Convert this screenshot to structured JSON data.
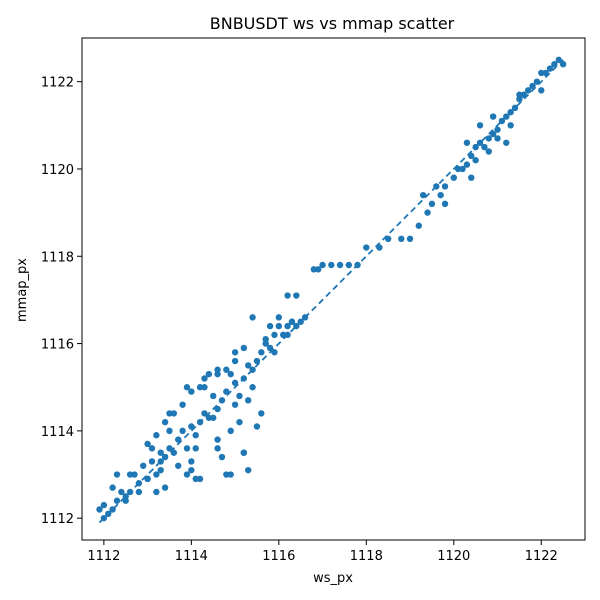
{
  "chart_data": {
    "type": "scatter",
    "title": "BNBUSDT ws vs mmap scatter",
    "xlabel": "ws_px",
    "ylabel": "mmap_px",
    "xlim": [
      1111.5,
      1123.0
    ],
    "ylim": [
      1111.5,
      1123.0
    ],
    "xticks": [
      1112,
      1114,
      1116,
      1118,
      1120,
      1122
    ],
    "yticks": [
      1112,
      1114,
      1116,
      1118,
      1120,
      1122
    ],
    "grid": false,
    "colors": {
      "points": "#1f77b4",
      "reference_line": "#1f77b4"
    },
    "reference_line": {
      "style": "dashed",
      "from": [
        1111.9,
        1111.9
      ],
      "to": [
        1122.5,
        1122.5
      ]
    },
    "series": [
      {
        "x": [
          1111.9,
          1112.0,
          1112.1,
          1112.2,
          1112.3,
          1112.0,
          1112.4,
          1112.2,
          1112.5,
          1112.6,
          1112.8,
          1113.0,
          1112.7,
          1113.1,
          1113.2,
          1112.9,
          1113.3,
          1112.3,
          1112.6,
          1113.0,
          1113.1,
          1113.3,
          1113.4,
          1113.5,
          1113.2,
          1113.6,
          1113.7,
          1113.8,
          1113.4,
          1113.9,
          1114.0,
          1114.1,
          1113.6,
          1114.2,
          1113.8,
          1114.3,
          1114.4,
          1114.5,
          1114.6,
          1114.2,
          1114.7,
          1114.8,
          1114.9,
          1115.0,
          1114.4,
          1115.1,
          1115.2,
          1115.3,
          1114.6,
          1115.0,
          1115.4,
          1115.5,
          1115.6,
          1115.2,
          1115.7,
          1115.8,
          1115.9,
          1116.0,
          1115.4,
          1116.2,
          1116.3,
          1115.7,
          1113.0,
          1113.5,
          1114.0,
          1114.5,
          1115.0,
          1115.3,
          1113.7,
          1114.1,
          1114.6,
          1115.1,
          1113.9,
          1114.3,
          1114.8,
          1113.3,
          1114.0,
          1114.7,
          1115.2,
          1114.2,
          1114.9,
          1115.5,
          1115.0,
          1113.5,
          1114.3,
          1114.9,
          1115.3,
          1114.6,
          1115.2,
          1114.1,
          1114.8,
          1115.6,
          1115.9,
          1116.1,
          1115.8,
          1116.2,
          1116.4,
          1116.0,
          1116.3,
          1116.5,
          1116.6,
          1116.2,
          1116.8,
          1116.9,
          1117.0,
          1117.2,
          1116.4,
          1117.4,
          1117.6,
          1117.8,
          1118.0,
          1118.3,
          1118.5,
          1118.8,
          1119.0,
          1119.2,
          1119.4,
          1119.5,
          1119.7,
          1119.8,
          1120.0,
          1120.1,
          1120.2,
          1120.3,
          1120.4,
          1120.5,
          1120.6,
          1120.7,
          1120.8,
          1120.9,
          1121.0,
          1121.1,
          1121.2,
          1121.3,
          1121.4,
          1121.5,
          1121.6,
          1121.7,
          1121.8,
          1121.9,
          1122.0,
          1122.1,
          1122.2,
          1122.3,
          1122.4,
          1122.5,
          1120.3,
          1120.5,
          1120.8,
          1121.0,
          1120.6,
          1121.3,
          1120.9,
          1121.5,
          1122.0,
          1121.2,
          1120.4,
          1119.6,
          1119.3,
          1119.8,
          1113.2,
          1112.5,
          1113.4,
          1112.8,
          1114.6,
          1115.4,
          1114.0,
          1113.9
        ],
        "y": [
          1112.2,
          1112.0,
          1112.1,
          1112.2,
          1112.4,
          1112.3,
          1112.6,
          1112.7,
          1112.5,
          1113.0,
          1112.8,
          1112.9,
          1113.0,
          1113.3,
          1113.0,
          1113.2,
          1113.5,
          1113.0,
          1112.6,
          1112.9,
          1113.6,
          1113.1,
          1113.4,
          1113.6,
          1113.9,
          1113.5,
          1113.8,
          1114.0,
          1114.2,
          1113.6,
          1114.1,
          1113.9,
          1114.4,
          1114.2,
          1114.6,
          1114.4,
          1114.3,
          1114.8,
          1114.5,
          1115.0,
          1114.7,
          1114.9,
          1115.3,
          1115.1,
          1115.3,
          1114.8,
          1115.2,
          1115.5,
          1115.4,
          1115.6,
          1115.4,
          1115.6,
          1115.8,
          1115.9,
          1116.0,
          1115.9,
          1116.2,
          1116.4,
          1116.6,
          1116.2,
          1116.5,
          1116.1,
          1113.7,
          1114.4,
          1114.9,
          1114.3,
          1114.6,
          1114.7,
          1113.2,
          1113.6,
          1113.8,
          1114.2,
          1115.0,
          1115.2,
          1115.4,
          1113.3,
          1113.1,
          1113.4,
          1113.5,
          1112.9,
          1113.0,
          1114.1,
          1115.8,
          1114.0,
          1115.0,
          1114.0,
          1113.1,
          1113.6,
          1113.5,
          1112.9,
          1113.0,
          1114.4,
          1115.8,
          1116.2,
          1116.4,
          1116.4,
          1116.4,
          1116.6,
          1116.5,
          1116.5,
          1116.6,
          1117.1,
          1117.7,
          1117.7,
          1117.8,
          1117.8,
          1117.1,
          1117.8,
          1117.8,
          1117.8,
          1118.2,
          1118.2,
          1118.4,
          1118.4,
          1118.4,
          1118.7,
          1119.0,
          1119.2,
          1119.4,
          1119.6,
          1119.8,
          1120.0,
          1120.0,
          1120.1,
          1120.3,
          1120.5,
          1120.6,
          1120.5,
          1120.7,
          1120.8,
          1120.9,
          1121.1,
          1121.2,
          1121.3,
          1121.4,
          1121.6,
          1121.7,
          1121.8,
          1121.9,
          1122.0,
          1122.2,
          1122.2,
          1122.3,
          1122.4,
          1122.5,
          1122.4,
          1120.6,
          1120.2,
          1120.4,
          1120.7,
          1121.0,
          1121.0,
          1121.2,
          1121.7,
          1121.8,
          1120.6,
          1119.8,
          1119.6,
          1119.4,
          1119.2,
          1112.6,
          1112.4,
          1112.7,
          1112.6,
          1115.3,
          1115.0,
          1113.3,
          1113.0
        ]
      }
    ]
  }
}
